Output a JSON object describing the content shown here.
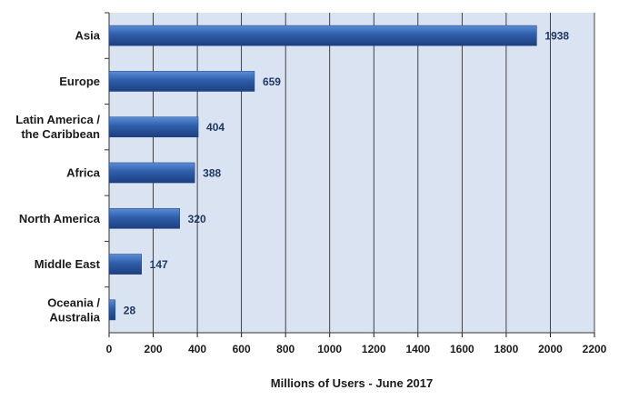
{
  "chart_data": {
    "type": "bar",
    "orientation": "horizontal",
    "categories": [
      "Asia",
      "Europe",
      "Latin America /\nthe Caribbean",
      "Africa",
      "North America",
      "Middle East",
      "Oceania  /\nAustralia"
    ],
    "values": [
      1938,
      659,
      404,
      388,
      320,
      147,
      28
    ],
    "data_labels": [
      "1938",
      "659",
      "404",
      "388",
      "320",
      "147",
      "28"
    ],
    "xlabel": "Millions of Users - June 2017",
    "ylabel": "",
    "xlim": [
      0,
      2200
    ],
    "xticks": [
      0,
      200,
      400,
      600,
      800,
      1000,
      1200,
      1400,
      1600,
      1800,
      2000,
      2200
    ],
    "grid": "vertical",
    "colors": {
      "plot_background": "#dae3f2",
      "bar": "#2e5eaa",
      "bar_light": "#5b8ed6",
      "bar_dark": "#1d3f80",
      "grid": "#1a1a1a",
      "value_label": "#1f3864"
    }
  }
}
